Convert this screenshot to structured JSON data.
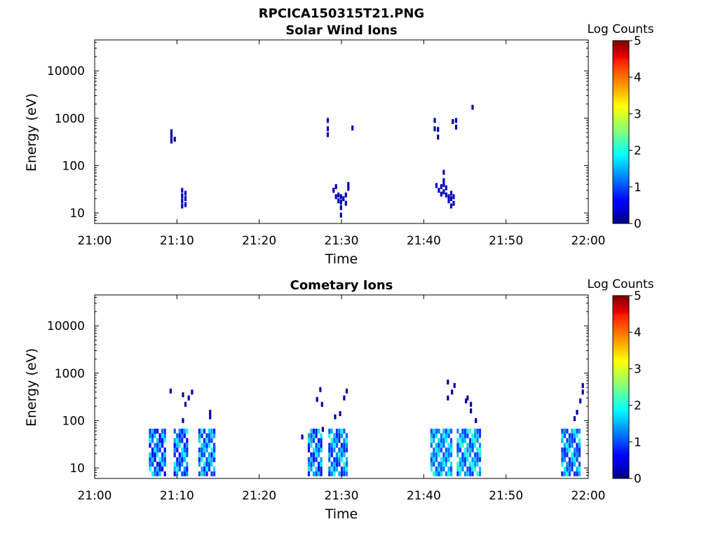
{
  "figure": {
    "title": "RPCICA150315T21.PNG"
  },
  "chart_data": [
    {
      "type": "heatmap",
      "title": "Solar Wind Ions",
      "xlabel": "Time",
      "ylabel": "Energy (eV)",
      "x_ticks": [
        "21:00",
        "21:10",
        "21:20",
        "21:30",
        "21:40",
        "21:50",
        "22:00"
      ],
      "xlim_minutes": [
        0,
        60
      ],
      "y_ticks": [
        "10",
        "100",
        "1000",
        "10000"
      ],
      "y_scale": "log",
      "ylim": [
        6,
        45000
      ],
      "colorbar": {
        "label": "Log Counts",
        "ticks": [
          "0",
          "1",
          "2",
          "3",
          "4",
          "5"
        ],
        "range": [
          0,
          5
        ],
        "colormap": "jet"
      },
      "points": [
        [
          9.2,
          330,
          0.2
        ],
        [
          9.2,
          420,
          0.2
        ],
        [
          9.2,
          520,
          0.2
        ],
        [
          9.6,
          360,
          0.2
        ],
        [
          10.5,
          14,
          0.3
        ],
        [
          10.5,
          18,
          0.3
        ],
        [
          10.5,
          23,
          0.3
        ],
        [
          10.5,
          30,
          0.3
        ],
        [
          10.9,
          15,
          0.3
        ],
        [
          10.9,
          20,
          0.3
        ],
        [
          10.9,
          26,
          0.3
        ],
        [
          28.2,
          450,
          0.2
        ],
        [
          28.2,
          600,
          0.2
        ],
        [
          28.2,
          900,
          0.2
        ],
        [
          31.2,
          620,
          0.2
        ],
        [
          28.9,
          30,
          0.3
        ],
        [
          29.2,
          22,
          0.3
        ],
        [
          29.2,
          36,
          0.3
        ],
        [
          29.5,
          18,
          0.3
        ],
        [
          29.5,
          24,
          0.3
        ],
        [
          29.8,
          9,
          0.3
        ],
        [
          29.8,
          13,
          0.3
        ],
        [
          29.8,
          17,
          0.3
        ],
        [
          29.8,
          22,
          0.3
        ],
        [
          30.1,
          20,
          0.3
        ],
        [
          30.4,
          16,
          0.3
        ],
        [
          30.4,
          24,
          0.3
        ],
        [
          30.7,
          33,
          0.3
        ],
        [
          30.7,
          40,
          0.3
        ],
        [
          41.2,
          600,
          0.2
        ],
        [
          41.2,
          900,
          0.2
        ],
        [
          41.6,
          400,
          0.2
        ],
        [
          41.6,
          580,
          0.2
        ],
        [
          43.4,
          850,
          0.2
        ],
        [
          43.8,
          650,
          0.2
        ],
        [
          43.8,
          900,
          0.2
        ],
        [
          45.8,
          1700,
          0.2
        ],
        [
          41.4,
          38,
          0.3
        ],
        [
          41.7,
          30,
          0.3
        ],
        [
          42.0,
          25,
          0.3
        ],
        [
          42.0,
          36,
          0.3
        ],
        [
          42.3,
          28,
          0.3
        ],
        [
          42.3,
          40,
          0.3
        ],
        [
          42.3,
          48,
          0.3
        ],
        [
          42.3,
          72,
          0.2
        ],
        [
          42.6,
          24,
          0.3
        ],
        [
          42.6,
          34,
          0.3
        ],
        [
          42.9,
          22,
          0.3
        ],
        [
          42.9,
          18,
          0.3
        ],
        [
          43.2,
          14,
          0.3
        ],
        [
          43.2,
          20,
          0.3
        ],
        [
          43.2,
          26,
          0.3
        ],
        [
          43.5,
          16,
          0.3
        ],
        [
          43.5,
          22,
          0.3
        ]
      ]
    },
    {
      "type": "heatmap",
      "title": "Cometary Ions",
      "xlabel": "Time",
      "ylabel": "Energy (eV)",
      "x_ticks": [
        "21:00",
        "21:10",
        "21:20",
        "21:30",
        "21:40",
        "21:50",
        "22:00"
      ],
      "xlim_minutes": [
        0,
        60
      ],
      "y_ticks": [
        "10",
        "100",
        "1000",
        "10000"
      ],
      "y_scale": "log",
      "ylim": [
        6,
        45000
      ],
      "colorbar": {
        "label": "Log Counts",
        "ticks": [
          "0",
          "1",
          "2",
          "3",
          "4",
          "5"
        ],
        "range": [
          0,
          5
        ],
        "colormap": "jet"
      },
      "clusters": [
        {
          "t0": 6.6,
          "t1": 8.5,
          "levels": [
            0.6,
            1.9,
            1.2,
            0.9,
            1.6,
            0.7
          ]
        },
        {
          "t0": 9.6,
          "t1": 11.4,
          "levels": [
            0.7,
            1.5,
            1.9,
            1.1,
            0.8,
            1.3
          ]
        },
        {
          "t0": 12.6,
          "t1": 14.5,
          "levels": [
            1.0,
            1.7,
            1.4,
            0.8,
            1.9,
            0.9
          ]
        },
        {
          "t0": 25.9,
          "t1": 27.6,
          "levels": [
            0.8,
            1.8,
            1.4,
            1.0,
            1.6,
            0.7
          ]
        },
        {
          "t0": 28.4,
          "t1": 30.8,
          "levels": [
            0.9,
            1.3,
            2.0,
            1.1,
            1.5,
            0.8
          ]
        },
        {
          "t0": 40.8,
          "t1": 43.4,
          "levels": [
            1.2,
            1.9,
            1.5,
            1.0,
            1.7,
            1.1
          ]
        },
        {
          "t0": 44.0,
          "t1": 46.9,
          "levels": [
            0.9,
            1.8,
            2.1,
            1.3,
            1.6,
            1.0
          ]
        },
        {
          "t0": 56.7,
          "t1": 59.0,
          "levels": [
            0.8,
            1.5,
            1.9,
            1.0,
            1.3,
            0.9
          ]
        }
      ],
      "points": [
        [
          9.1,
          420,
          0.2
        ],
        [
          10.6,
          350,
          0.2
        ],
        [
          10.9,
          220,
          0.2
        ],
        [
          11.3,
          300,
          0.2
        ],
        [
          11.7,
          400,
          0.2
        ],
        [
          10.6,
          100,
          0.3
        ],
        [
          13.9,
          150,
          0.3
        ],
        [
          13.9,
          120,
          0.3
        ],
        [
          26.9,
          280,
          0.2
        ],
        [
          27.3,
          450,
          0.2
        ],
        [
          27.5,
          220,
          0.2
        ],
        [
          30.2,
          300,
          0.2
        ],
        [
          30.5,
          420,
          0.2
        ],
        [
          29.1,
          120,
          0.2
        ],
        [
          29.7,
          140,
          0.2
        ],
        [
          27.6,
          65,
          0.2
        ],
        [
          25.1,
          45,
          0.2
        ],
        [
          42.8,
          650,
          0.2
        ],
        [
          42.8,
          300,
          0.2
        ],
        [
          43.6,
          550,
          0.2
        ],
        [
          43.3,
          400,
          0.2
        ],
        [
          45.2,
          300,
          0.2
        ],
        [
          45.6,
          220,
          0.2
        ],
        [
          45.6,
          160,
          0.2
        ],
        [
          46.2,
          100,
          0.2
        ],
        [
          45.0,
          260,
          0.2
        ],
        [
          58.5,
          150,
          0.2
        ],
        [
          58.9,
          260,
          0.2
        ],
        [
          59.2,
          400,
          0.2
        ],
        [
          59.2,
          550,
          0.2
        ],
        [
          58.2,
          110,
          0.2
        ]
      ]
    }
  ]
}
